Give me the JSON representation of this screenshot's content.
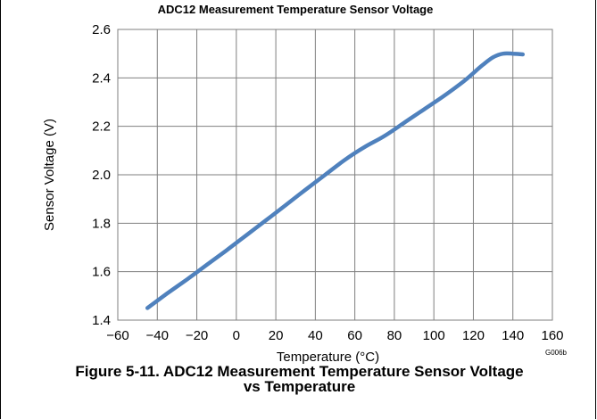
{
  "chart_data": {
    "type": "line",
    "title": "ADC12 Measurement Temperature Sensor Voltage",
    "xlabel": "Temperature (°C)",
    "ylabel": "Sensor Voltage (V)",
    "xlim": [
      -60,
      160
    ],
    "ylim": [
      1.4,
      2.6
    ],
    "x_ticks": [
      -60,
      -40,
      -20,
      0,
      20,
      40,
      60,
      80,
      100,
      120,
      140,
      160
    ],
    "y_ticks": [
      1.4,
      1.6,
      1.8,
      2.0,
      2.2,
      2.4,
      2.6
    ],
    "x_tick_labels": [
      "−60",
      "−40",
      "−20",
      "0",
      "20",
      "40",
      "60",
      "80",
      "100",
      "120",
      "140",
      "160"
    ],
    "y_tick_labels": [
      "1.4",
      "1.6",
      "1.8",
      "2.0",
      "2.2",
      "2.4",
      "2.6"
    ],
    "grid": true,
    "series": [
      {
        "color": "#4f81bd",
        "x": [
          -45,
          -35,
          -25,
          -15,
          -5,
          5,
          15,
          25,
          35,
          45,
          55,
          65,
          75,
          85,
          95,
          105,
          115,
          120,
          125,
          130,
          135,
          140,
          145
        ],
        "y": [
          1.45,
          1.51,
          1.568,
          1.628,
          1.688,
          1.75,
          1.812,
          1.875,
          1.938,
          2.0,
          2.062,
          2.115,
          2.16,
          2.215,
          2.27,
          2.325,
          2.385,
          2.42,
          2.455,
          2.485,
          2.5,
          2.5,
          2.497
        ]
      }
    ]
  },
  "figure_code": "G006b",
  "caption": {
    "line1": "Figure 5-11. ADC12 Measurement Temperature Sensor Voltage",
    "line2": "vs Temperature"
  }
}
